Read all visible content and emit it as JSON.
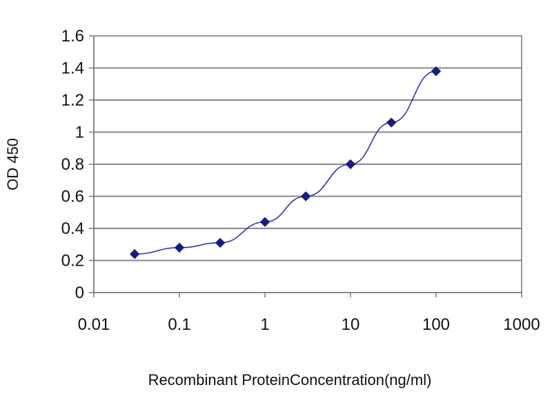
{
  "chart_data": {
    "type": "line",
    "title": "",
    "xlabel": "Recombinant ProteinConcentration(ng/ml)",
    "ylabel": "OD 450",
    "x_scale": "log",
    "xlim": [
      0.01,
      1000
    ],
    "ylim": [
      0,
      1.6
    ],
    "x_ticks": [
      "0.01",
      "0.1",
      "1",
      "10",
      "100",
      "1000"
    ],
    "y_ticks": [
      "0",
      "0.2",
      "0.4",
      "0.6",
      "0.8",
      "1",
      "1.2",
      "1.4",
      "1.6"
    ],
    "grid": "horizontal",
    "legend": "none",
    "series": [
      {
        "x": [
          0.03,
          0.1,
          0.3,
          1,
          3,
          10,
          30,
          100
        ],
        "y": [
          0.24,
          0.28,
          0.31,
          0.44,
          0.6,
          0.8,
          1.06,
          1.38
        ]
      }
    ],
    "colors": {
      "line": "#3333aa",
      "marker": "#1a1a80",
      "grid": "#888888",
      "axis": "#777777"
    }
  }
}
